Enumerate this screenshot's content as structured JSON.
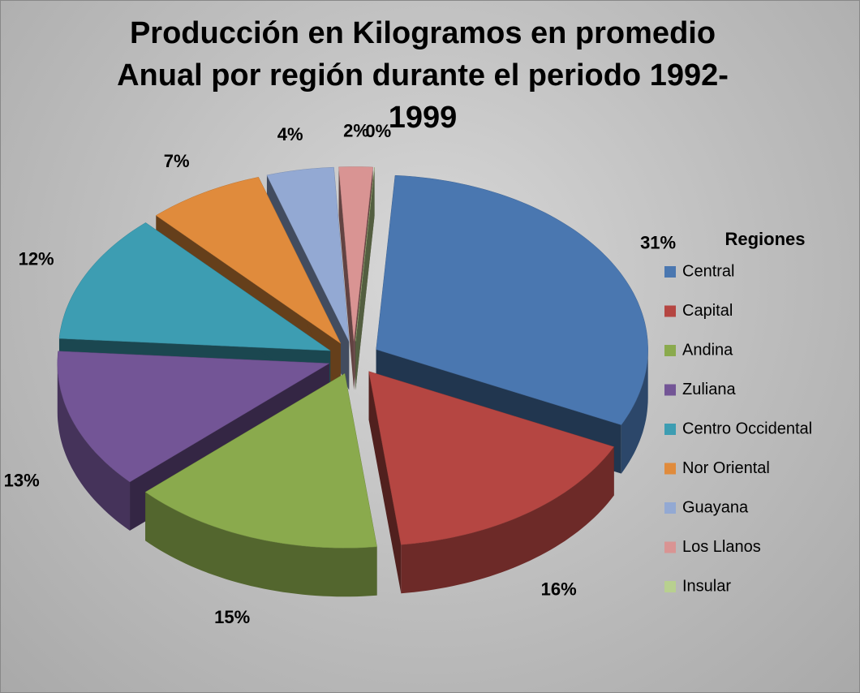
{
  "chart_data": {
    "type": "pie",
    "title": "Producción en Kilogramos en promedio Anual por región durante el periodo 1992-1999",
    "legend_title": "Regiones",
    "legend": "right",
    "categories": [
      "Central",
      "Capital",
      "Andina",
      "Zuliana",
      "Centro Occidental",
      "Nor Oriental",
      "Guayana",
      "Los Llanos",
      "Insular"
    ],
    "values": [
      31,
      16,
      15,
      13,
      12,
      7,
      4,
      2,
      0
    ],
    "value_labels": [
      "31%",
      "16%",
      "15%",
      "13%",
      "12%",
      "7%",
      "4%",
      "2%",
      "0%"
    ],
    "colors": [
      "#4a77b0",
      "#b54642",
      "#8aaa4d",
      "#735596",
      "#3d9db2",
      "#e08b3c",
      "#93a9d3",
      "#d99493",
      "#b8d08f"
    ]
  }
}
